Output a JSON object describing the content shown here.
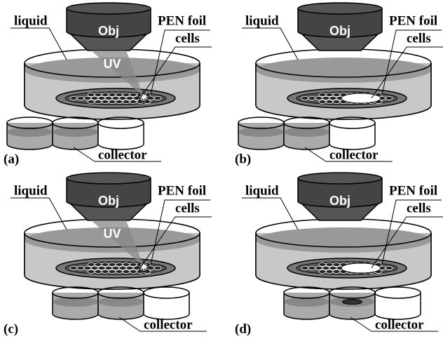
{
  "panels": [
    {
      "label": "(a)",
      "objective": "Obj",
      "liquid": "liquid",
      "foil": "PEN foil",
      "cells": "cells",
      "beam": "UV",
      "collector": "collector"
    },
    {
      "label": "(b)",
      "objective": "Obj",
      "liquid": "liquid",
      "foil": "PEN foil",
      "cells": "cells",
      "collector": "collector"
    },
    {
      "label": "(c)",
      "objective": "Obj",
      "liquid": "liquid",
      "foil": "PEN foil",
      "cells": "cells",
      "beam": "UV",
      "collector": "collector"
    },
    {
      "label": "(d)",
      "objective": "Obj",
      "liquid": "liquid",
      "foil": "PEN foil",
      "cells": "cells",
      "collector": "collector"
    }
  ]
}
